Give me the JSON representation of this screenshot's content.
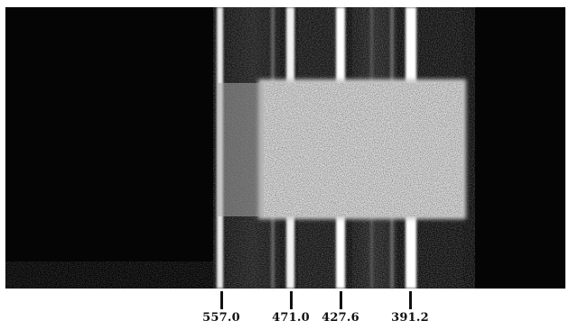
{
  "spectrum": {
    "lines": [
      {
        "label": "557.0"
      },
      {
        "label": "471.0"
      },
      {
        "label": "427.6"
      },
      {
        "label": "391.2"
      }
    ]
  }
}
